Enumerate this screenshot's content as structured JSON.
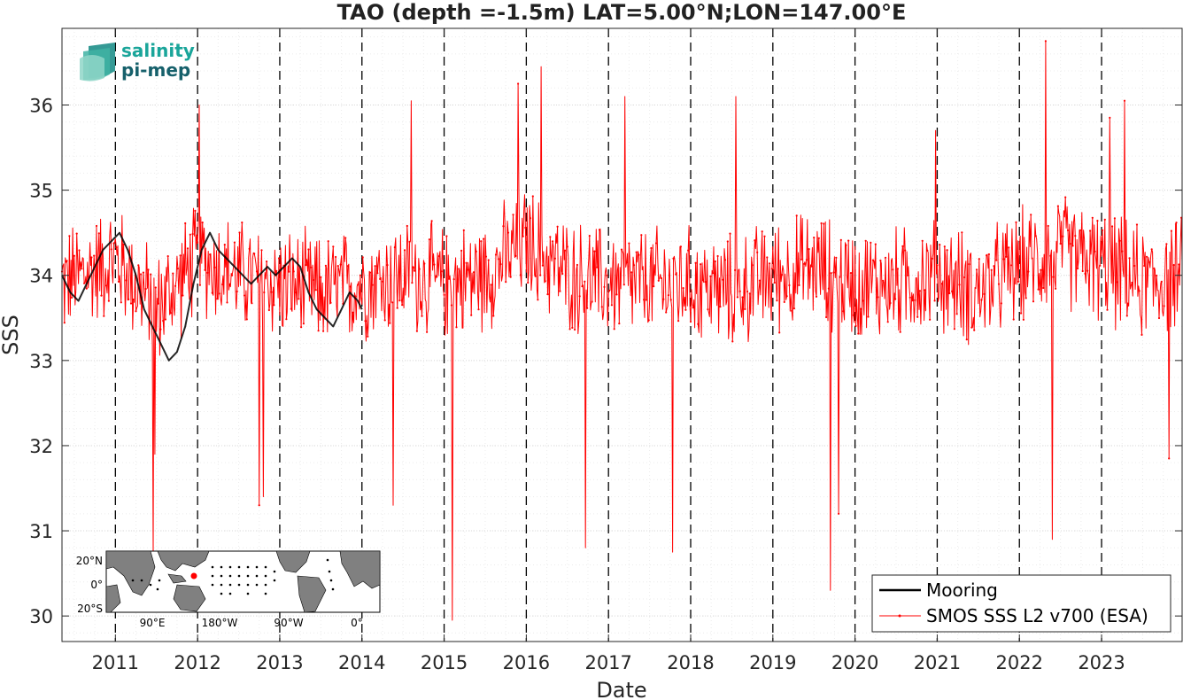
{
  "colors": {
    "smos": "#ff0000",
    "mooring": "#000000",
    "grid": "#d9d9d9",
    "axis": "#262626",
    "logo_teal": "#1aa59a",
    "logo_dark": "#16606b",
    "land": "#808080"
  },
  "logo": {
    "line1": "salinity",
    "line2": "pi-mep",
    "icon": "wave-layers-icon"
  },
  "inset_map": {
    "icon": "world-map-icon",
    "mooring_marker": "red-dot",
    "lat_ticks": [
      "20°N",
      "0°",
      "20°S"
    ],
    "lon_ticks": [
      "90°E",
      "180°W",
      "90°W",
      "0°"
    ]
  },
  "chart_data": {
    "type": "line",
    "title": "TAO (depth =-1.5m) LAT=5.00°N;LON=147.00°E",
    "xlabel": "Date",
    "ylabel": "SSS",
    "xlim": [
      2010.35,
      2023.98
    ],
    "ylim": [
      29.7,
      36.9
    ],
    "grid": true,
    "minor_grid": true,
    "x_ticks": [
      2011,
      2012,
      2013,
      2014,
      2015,
      2016,
      2017,
      2018,
      2019,
      2020,
      2021,
      2022,
      2023
    ],
    "x_tick_labels": [
      "2011",
      "2012",
      "2013",
      "2014",
      "2015",
      "2016",
      "2017",
      "2018",
      "2019",
      "2020",
      "2021",
      "2022",
      "2023"
    ],
    "y_ticks": [
      30,
      31,
      32,
      33,
      34,
      35,
      36
    ],
    "y_tick_labels": [
      "30",
      "31",
      "32",
      "33",
      "34",
      "35",
      "36"
    ],
    "year_boundaries_dashed": [
      2011,
      2012,
      2013,
      2014,
      2015,
      2016,
      2017,
      2018,
      2019,
      2020,
      2021,
      2022,
      2023
    ],
    "legend": {
      "placement": "bottom-right",
      "entries": [
        "Mooring",
        "SMOS SSS L2 v700 (ESA)"
      ]
    },
    "series": [
      {
        "name": "Mooring",
        "color": "#000000",
        "x": [
          2010.35,
          2010.45,
          2010.55,
          2010.65,
          2010.75,
          2010.85,
          2010.95,
          2011.05,
          2011.15,
          2011.25,
          2011.35,
          2011.45,
          2011.55,
          2011.65,
          2011.75,
          2011.85,
          2011.95,
          2012.05,
          2012.15,
          2012.25,
          2012.35,
          2012.45,
          2012.55,
          2012.65,
          2012.75,
          2012.85,
          2012.95,
          2013.05,
          2013.15,
          2013.25,
          2013.35,
          2013.45,
          2013.55,
          2013.65,
          2013.75,
          2013.85,
          2013.95,
          2014.0
        ],
        "y": [
          34.0,
          33.8,
          33.7,
          33.9,
          34.1,
          34.3,
          34.4,
          34.5,
          34.3,
          34.0,
          33.6,
          33.4,
          33.2,
          33.0,
          33.1,
          33.4,
          33.9,
          34.3,
          34.5,
          34.3,
          34.2,
          34.1,
          34.0,
          33.9,
          34.0,
          34.1,
          34.0,
          34.1,
          34.2,
          34.1,
          33.8,
          33.6,
          33.5,
          33.4,
          33.6,
          33.8,
          33.7,
          33.6
        ]
      },
      {
        "name": "SMOS SSS L2 v700 (ESA)",
        "color": "#ff0000",
        "x_range": [
          2010.35,
          2023.98
        ],
        "x_step": 0.01,
        "baseline": [
          [
            2010.35,
            33.9
          ],
          [
            2011.0,
            34.2
          ],
          [
            2011.5,
            33.6
          ],
          [
            2012.0,
            34.2
          ],
          [
            2012.5,
            34.0
          ],
          [
            2013.0,
            33.9
          ],
          [
            2013.5,
            33.8
          ],
          [
            2014.0,
            33.9
          ],
          [
            2014.5,
            34.0
          ],
          [
            2015.0,
            33.9
          ],
          [
            2015.5,
            34.0
          ],
          [
            2016.0,
            34.4
          ],
          [
            2016.5,
            34.0
          ],
          [
            2017.0,
            33.9
          ],
          [
            2017.5,
            33.9
          ],
          [
            2018.0,
            33.9
          ],
          [
            2018.5,
            33.8
          ],
          [
            2019.0,
            34.0
          ],
          [
            2019.5,
            34.1
          ],
          [
            2020.0,
            33.9
          ],
          [
            2020.5,
            33.9
          ],
          [
            2021.0,
            34.0
          ],
          [
            2021.5,
            33.8
          ],
          [
            2022.0,
            34.1
          ],
          [
            2022.5,
            34.3
          ],
          [
            2023.0,
            34.1
          ],
          [
            2023.5,
            33.9
          ],
          [
            2023.98,
            34.0
          ]
        ],
        "noise_amplitude": 0.55,
        "spikes": [
          [
            2011.46,
            30.7
          ],
          [
            2011.48,
            31.9
          ],
          [
            2012.02,
            36.0
          ],
          [
            2012.75,
            31.3
          ],
          [
            2012.8,
            31.4
          ],
          [
            2014.38,
            31.3
          ],
          [
            2014.6,
            36.05
          ],
          [
            2015.1,
            29.95
          ],
          [
            2015.9,
            36.25
          ],
          [
            2016.18,
            36.45
          ],
          [
            2016.72,
            30.8
          ],
          [
            2017.2,
            36.1
          ],
          [
            2017.78,
            30.75
          ],
          [
            2018.55,
            36.1
          ],
          [
            2019.8,
            31.2
          ],
          [
            2019.7,
            30.3
          ],
          [
            2020.98,
            35.7
          ],
          [
            2022.32,
            36.75
          ],
          [
            2022.4,
            30.9
          ],
          [
            2023.1,
            35.85
          ],
          [
            2023.28,
            36.05
          ],
          [
            2023.82,
            31.85
          ]
        ]
      }
    ]
  }
}
